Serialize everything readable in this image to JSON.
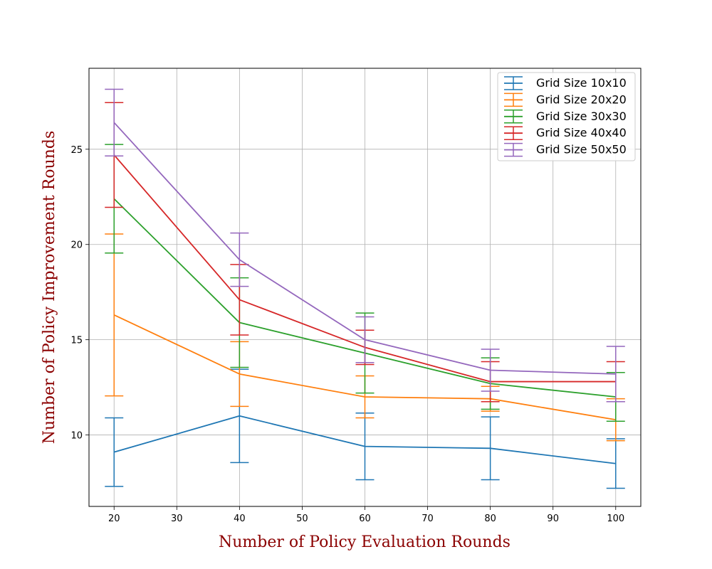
{
  "chart_data": {
    "type": "line",
    "xlabel": "Number of Policy Evaluation Rounds",
    "ylabel": "Number of Policy Improvement Rounds",
    "label_color": "#8b0000",
    "x": [
      20,
      40,
      60,
      80,
      100
    ],
    "xlim": [
      16.0,
      104.0
    ],
    "ylim": [
      6.25,
      29.25
    ],
    "xticks": [
      20,
      30,
      40,
      50,
      60,
      70,
      80,
      90,
      100
    ],
    "yticks": [
      10,
      15,
      20,
      25
    ],
    "grid": true,
    "legend_position": "top-right",
    "error_bars": true,
    "series": [
      {
        "name": "Grid Size 10x10",
        "color": "#1f77b4",
        "values": [
          9.1,
          11.0,
          9.4,
          9.3,
          8.5
        ],
        "err": [
          1.8,
          2.45,
          1.75,
          1.65,
          1.3
        ]
      },
      {
        "name": "Grid Size 20x20",
        "color": "#ff7f0e",
        "values": [
          16.3,
          13.2,
          12.0,
          11.9,
          10.8
        ],
        "err": [
          4.25,
          1.7,
          1.1,
          0.65,
          1.1
        ]
      },
      {
        "name": "Grid Size 30x30",
        "color": "#2ca02c",
        "values": [
          22.4,
          15.9,
          14.3,
          12.7,
          12.0
        ],
        "err": [
          2.85,
          2.35,
          2.1,
          1.35,
          1.28
        ]
      },
      {
        "name": "Grid Size 40x40",
        "color": "#d62728",
        "values": [
          24.7,
          17.1,
          14.6,
          12.8,
          12.8
        ],
        "err": [
          2.75,
          1.85,
          0.9,
          1.05,
          1.05
        ]
      },
      {
        "name": "Grid Size 50x50",
        "color": "#9467bd",
        "values": [
          26.4,
          19.2,
          15.0,
          13.4,
          13.2
        ],
        "err": [
          1.75,
          1.4,
          1.2,
          1.1,
          1.45
        ]
      }
    ]
  }
}
